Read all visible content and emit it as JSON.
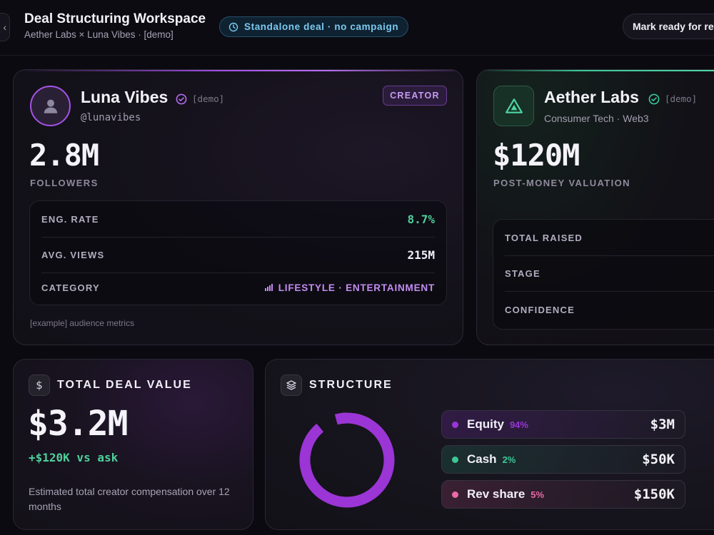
{
  "header": {
    "title": "Deal Structuring Workspace",
    "subtitle": "Aether Labs × Luna Vibes · [demo]",
    "campaign_pill": "Standalone deal · no campaign",
    "ready_button": "Mark ready for review"
  },
  "creator": {
    "name": "Luna Vibes",
    "demo_tag": "[demo]",
    "handle": "@lunavibes",
    "badge": "CREATOR",
    "followers": "2.8M",
    "followers_label": "FOLLOWERS",
    "stats": [
      {
        "label": "ENG. RATE",
        "value": "8.7%"
      },
      {
        "label": "AVG. VIEWS",
        "value": "215M"
      },
      {
        "label": "CATEGORY",
        "value": "LIFESTYLE · ENTERTAINMENT"
      }
    ],
    "footnote": "[example] audience metrics"
  },
  "company": {
    "name": "Aether Labs",
    "demo_tag": "[demo]",
    "sector": "Consumer Tech · Web3",
    "valuation": "$120M",
    "valuation_label": "POST-MONEY VALUATION",
    "stats": [
      {
        "label": "TOTAL RAISED",
        "value": ""
      },
      {
        "label": "STAGE",
        "value": ""
      },
      {
        "label": "CONFIDENCE",
        "value": ""
      }
    ]
  },
  "deal": {
    "icon": "dollar-icon",
    "title": "TOTAL DEAL VALUE",
    "value": "$3.2M",
    "delta": "+$120K vs ask",
    "description": "Estimated total creator compensation over 12 months"
  },
  "structure": {
    "icon": "layers-icon",
    "title": "STRUCTURE",
    "items": [
      {
        "name": "Equity",
        "pct": "94%",
        "share": 0.94,
        "value": "$3M",
        "color": "#9b35d6"
      },
      {
        "name": "Cash",
        "pct": "2%",
        "share": 0.02,
        "value": "$50K",
        "color": "#3cc796"
      },
      {
        "name": "Rev share",
        "pct": "5%",
        "share": 0.05,
        "value": "$150K",
        "color": "#e96aa6"
      }
    ]
  },
  "colors": {
    "accent_purple": "#9c4fe0",
    "accent_green": "#3cc796",
    "accent_blue": "#7cc9f0"
  }
}
